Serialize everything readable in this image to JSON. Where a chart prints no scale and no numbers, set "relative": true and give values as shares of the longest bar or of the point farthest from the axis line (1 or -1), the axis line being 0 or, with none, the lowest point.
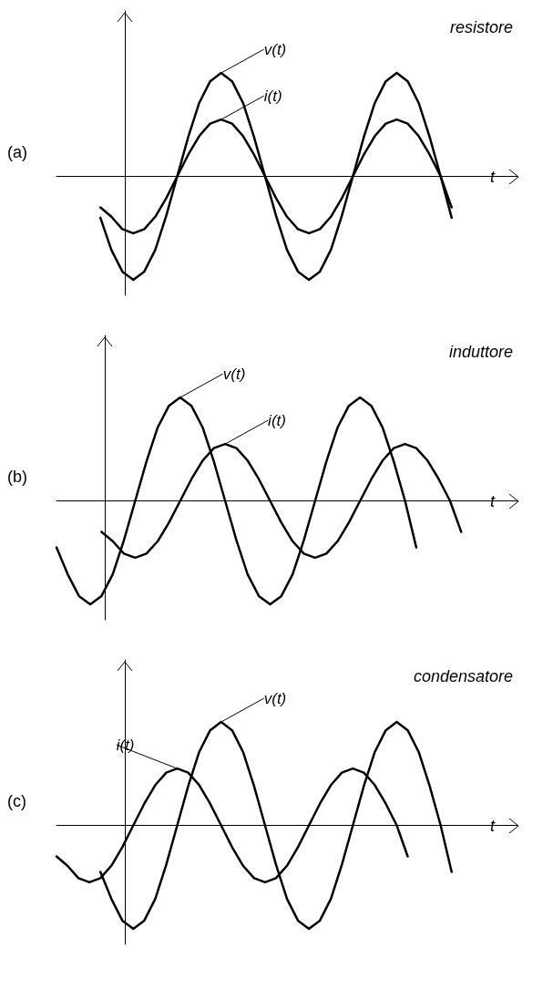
{
  "chart_data": [
    {
      "type": "line",
      "title": "resistore",
      "xlabel": "t",
      "annotations": [
        "(a)"
      ],
      "relative": true,
      "marker": "none",
      "legend": false,
      "categories": [
        null,
        null,
        null,
        null,
        null,
        null,
        null,
        null,
        null,
        null,
        null,
        null,
        null,
        null,
        null,
        null,
        null,
        null,
        null,
        null,
        null,
        null,
        null,
        null,
        null,
        null,
        null,
        null,
        null,
        null,
        null,
        null,
        null,
        null,
        null,
        null,
        null,
        null,
        null,
        null,
        null,
        null,
        null
      ],
      "series": [
        {
          "name": "v(t)",
          "color": "#000000",
          "values": [
            null,
            null,
            null,
            null,
            -0.4,
            -0.71,
            -0.92,
            -1,
            -0.92,
            -0.71,
            -0.38,
            0,
            0.38,
            0.71,
            0.92,
            1,
            0.92,
            0.71,
            0.38,
            0,
            -0.38,
            -0.71,
            -0.92,
            -1,
            -0.92,
            -0.71,
            -0.38,
            0,
            0.38,
            0.71,
            0.92,
            1,
            0.92,
            0.71,
            0.38,
            0,
            -0.4,
            null,
            null,
            null,
            null,
            null,
            null
          ]
        },
        {
          "name": "i(t)",
          "color": "#000000",
          "values": [
            null,
            null,
            null,
            null,
            -0.3,
            -0.39,
            -0.51,
            -0.55,
            -0.51,
            -0.39,
            -0.21,
            0,
            0.21,
            0.39,
            0.51,
            0.55,
            0.51,
            0.39,
            0.21,
            0,
            -0.21,
            -0.39,
            -0.51,
            -0.55,
            -0.51,
            -0.39,
            -0.21,
            0,
            0.21,
            0.39,
            0.51,
            0.55,
            0.51,
            0.39,
            0.21,
            0,
            -0.3,
            null,
            null,
            null,
            null,
            null,
            null
          ]
        }
      ]
    },
    {
      "type": "line",
      "title": "induttore",
      "xlabel": "t",
      "annotations": [
        "(b)"
      ],
      "relative": true,
      "marker": "none",
      "legend": false,
      "categories": [
        null,
        null,
        null,
        null,
        null,
        null,
        null,
        null,
        null,
        null,
        null,
        null,
        null,
        null,
        null,
        null,
        null,
        null,
        null,
        null,
        null,
        null,
        null,
        null,
        null,
        null,
        null,
        null,
        null,
        null,
        null,
        null,
        null,
        null,
        null,
        null,
        null,
        null,
        null,
        null,
        null,
        null
      ],
      "series": [
        {
          "name": "v(t)",
          "color": "#000000",
          "values": [
            -0.45,
            -0.71,
            -0.92,
            -1,
            -0.92,
            -0.71,
            -0.38,
            0,
            0.38,
            0.71,
            0.92,
            1,
            0.92,
            0.71,
            0.38,
            0,
            -0.38,
            -0.71,
            -0.92,
            -1,
            -0.92,
            -0.71,
            -0.38,
            0,
            0.38,
            0.71,
            0.92,
            1,
            0.92,
            0.71,
            0.38,
            0,
            -0.45,
            null,
            null,
            null,
            null,
            null,
            null,
            null,
            null,
            null
          ]
        },
        {
          "name": "i(t)",
          "color": "#000000",
          "values": [
            null,
            null,
            null,
            null,
            -0.3,
            -0.39,
            -0.51,
            -0.55,
            -0.51,
            -0.39,
            -0.21,
            0,
            0.21,
            0.39,
            0.51,
            0.55,
            0.51,
            0.39,
            0.21,
            0,
            -0.21,
            -0.39,
            -0.51,
            -0.55,
            -0.51,
            -0.39,
            -0.21,
            0,
            0.21,
            0.39,
            0.51,
            0.55,
            0.51,
            0.39,
            0.21,
            0,
            -0.3,
            null,
            null,
            null,
            null,
            null
          ]
        }
      ]
    },
    {
      "type": "line",
      "title": "condensatore",
      "xlabel": "t",
      "annotations": [
        "(c)"
      ],
      "relative": true,
      "marker": "none",
      "legend": false,
      "categories": [
        null,
        null,
        null,
        null,
        null,
        null,
        null,
        null,
        null,
        null,
        null,
        null,
        null,
        null,
        null,
        null,
        null,
        null,
        null,
        null,
        null,
        null,
        null,
        null,
        null,
        null,
        null,
        null,
        null,
        null,
        null,
        null,
        null,
        null,
        null,
        null,
        null,
        null,
        null,
        null,
        null,
        null,
        null
      ],
      "series": [
        {
          "name": "v(t)",
          "color": "#000000",
          "values": [
            null,
            null,
            null,
            null,
            -0.45,
            -0.71,
            -0.92,
            -1,
            -0.92,
            -0.71,
            -0.38,
            0,
            0.38,
            0.71,
            0.92,
            1,
            0.92,
            0.71,
            0.38,
            0,
            -0.38,
            -0.71,
            -0.92,
            -1,
            -0.92,
            -0.71,
            -0.38,
            0,
            0.38,
            0.71,
            0.92,
            1,
            0.92,
            0.71,
            0.38,
            0,
            -0.45,
            null,
            null,
            null,
            null,
            null,
            null
          ]
        },
        {
          "name": "i(t)",
          "color": "#000000",
          "values": [
            -0.3,
            -0.39,
            -0.51,
            -0.55,
            -0.51,
            -0.39,
            -0.21,
            0,
            0.21,
            0.39,
            0.51,
            0.55,
            0.51,
            0.39,
            0.21,
            0,
            -0.21,
            -0.39,
            -0.51,
            -0.55,
            -0.51,
            -0.39,
            -0.21,
            0,
            0.21,
            0.39,
            0.51,
            0.55,
            0.51,
            0.39,
            0.21,
            0,
            -0.3,
            null,
            null,
            null,
            null,
            null,
            null,
            null,
            null,
            null,
            null
          ]
        }
      ]
    }
  ]
}
